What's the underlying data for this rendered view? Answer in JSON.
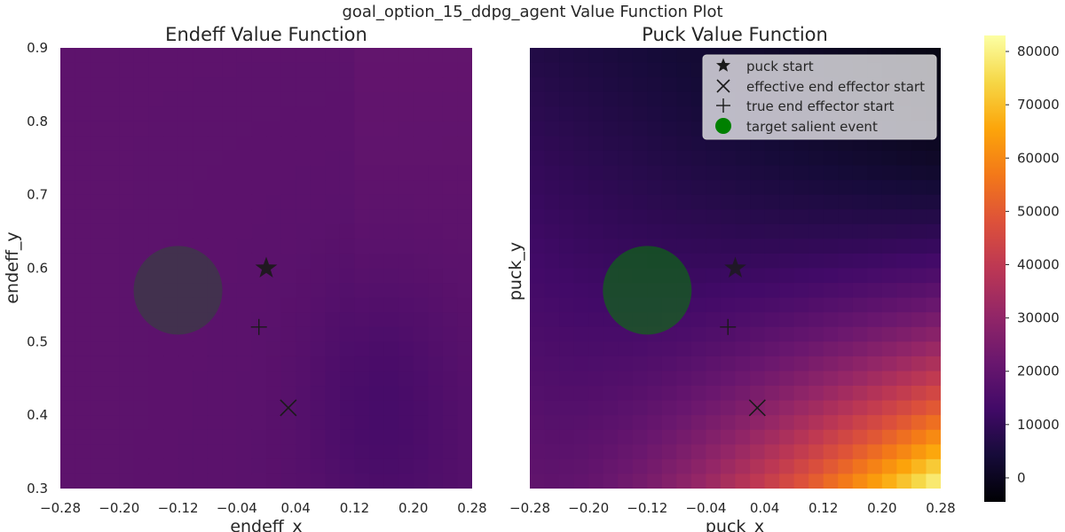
{
  "suptitle": "goal_option_15_ddpg_agent Value Function Plot",
  "colorbar": {
    "min": -4500,
    "max": 83000,
    "ticks": [
      "0",
      "10000",
      "20000",
      "30000",
      "40000",
      "50000",
      "60000",
      "70000",
      "80000"
    ],
    "colormap": "inferno"
  },
  "chart_data": [
    {
      "type": "heatmap",
      "title": "Endeff Value Function",
      "xlabel": "endeff_x",
      "ylabel": "endeff_y",
      "xlim": [
        -0.28,
        0.28
      ],
      "ylim": [
        0.3,
        0.9
      ],
      "xticks": [
        "−0.28",
        "−0.20",
        "−0.12",
        "−0.04",
        "0.04",
        "0.12",
        "0.20",
        "0.28"
      ],
      "yticks": [
        "0.3",
        "0.4",
        "0.5",
        "0.6",
        "0.7",
        "0.8",
        "0.9"
      ],
      "grid": "28x30",
      "value_model": {
        "description": "approximately uniform value around 15000-19000",
        "base": 17500,
        "samples": [
          {
            "x": -0.26,
            "y": 0.88,
            "value": 19500
          },
          {
            "x": 0.26,
            "y": 0.88,
            "value": 20500
          },
          {
            "x": -0.26,
            "y": 0.32,
            "value": 19000
          },
          {
            "x": 0.1,
            "y": 0.4,
            "value": 14000
          },
          {
            "x": -0.12,
            "y": 0.57,
            "value": 17000
          }
        ]
      },
      "markers": {
        "puck_start": {
          "x": 0.0,
          "y": 0.6
        },
        "effective_end_effector_start": {
          "x": 0.03,
          "y": 0.41
        },
        "true_end_effector_start": {
          "x": -0.01,
          "y": 0.52
        },
        "target_salient_event": {
          "x": -0.12,
          "y": 0.57
        }
      }
    },
    {
      "type": "heatmap",
      "title": "Puck Value Function",
      "xlabel": "puck_x",
      "ylabel": "puck_y",
      "xlim": [
        -0.28,
        0.28
      ],
      "ylim": [
        0.3,
        0.9
      ],
      "xticks": [
        "−0.28",
        "−0.20",
        "−0.12",
        "−0.04",
        "0.04",
        "0.12",
        "0.20",
        "0.28"
      ],
      "grid": "28x30",
      "value_model": {
        "description": "near 0 at top-right, rising to ~80000 at bottom-right",
        "samples": [
          {
            "x": 0.26,
            "y": 0.88,
            "value": -2000
          },
          {
            "x": -0.26,
            "y": 0.88,
            "value": 7000
          },
          {
            "x": -0.26,
            "y": 0.32,
            "value": 20000
          },
          {
            "x": 0.1,
            "y": 0.32,
            "value": 62000
          },
          {
            "x": 0.27,
            "y": 0.31,
            "value": 82000
          },
          {
            "x": 0.27,
            "y": 0.5,
            "value": 42000
          }
        ]
      },
      "markers": {
        "puck_start": {
          "x": 0.0,
          "y": 0.6
        },
        "effective_end_effector_start": {
          "x": 0.03,
          "y": 0.41
        },
        "true_end_effector_start": {
          "x": -0.01,
          "y": 0.52
        },
        "target_salient_event": {
          "x": -0.12,
          "y": 0.57
        }
      },
      "legend": {
        "placement": "top-right",
        "entries": [
          {
            "label": "puck start",
            "marker": "star"
          },
          {
            "label": "effective end effector start",
            "marker": "x"
          },
          {
            "label": "true end effector start",
            "marker": "plus"
          },
          {
            "label": "target salient event",
            "marker": "circle",
            "color": "#008000"
          }
        ]
      }
    }
  ]
}
